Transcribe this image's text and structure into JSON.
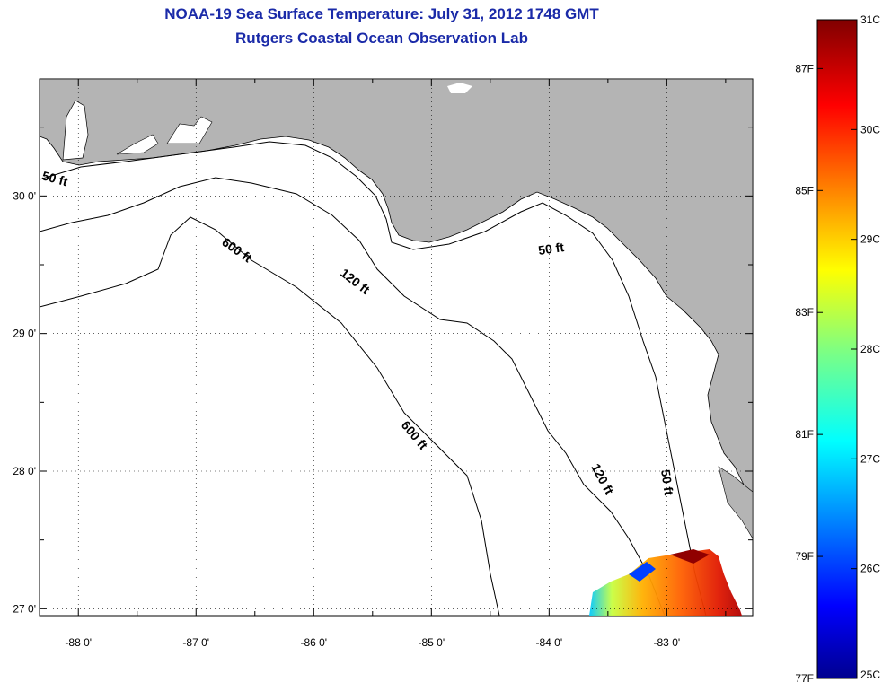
{
  "header": {
    "title": "NOAA-19 Sea Surface Temperature:  July 31, 2012 1748 GMT",
    "subtitle": "Rutgers Coastal Ocean Observation Lab"
  },
  "map": {
    "lon_range": [
      -88.33,
      -82.27
    ],
    "lat_range": [
      26.95,
      30.85
    ],
    "lat_ticks": [
      {
        "value": 30,
        "label": "30 0'"
      },
      {
        "value": 29,
        "label": "29 0'"
      },
      {
        "value": 28,
        "label": "28 0'"
      },
      {
        "value": 27,
        "label": "27 0'"
      }
    ],
    "lon_ticks": [
      {
        "value": -88,
        "label": "-88 0'"
      },
      {
        "value": -87,
        "label": "-87 0'"
      },
      {
        "value": -86,
        "label": "-86 0'"
      },
      {
        "value": -85,
        "label": "-85 0'"
      },
      {
        "value": -84,
        "label": "-84 0'"
      },
      {
        "value": -83,
        "label": "-83 0'"
      }
    ],
    "contour_labels": [
      "50 ft",
      "50 ft",
      "50 ft",
      "120 ft",
      "120 ft",
      "600 ft",
      "600 ft"
    ],
    "colors": {
      "land": "#b4b4b4",
      "ocean": "#ffffff",
      "contour": "#000000"
    }
  },
  "colorbar": {
    "celsius_labels": [
      "31C",
      "30C",
      "29C",
      "28C",
      "27C",
      "26C",
      "25C"
    ],
    "fahrenheit_labels": [
      "87F",
      "85F",
      "83F",
      "81F",
      "79F",
      "77F"
    ],
    "colormap": "jet"
  }
}
